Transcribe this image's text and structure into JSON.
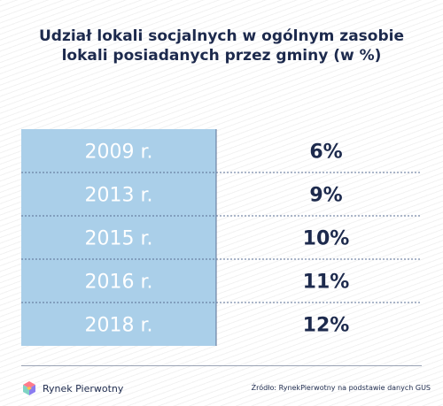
{
  "chart_data": {
    "type": "table",
    "title": "Udział lokali socjalnych w ogólnym zasobie lokali posiadanych przez gminy (w %)",
    "title_lines": [
      "Udział lokali socjalnych w ogólnym zasobie",
      "lokali posiadanych przez gminy (w %)"
    ],
    "columns": [
      "",
      ""
    ],
    "categories": [
      "2009 r.",
      "2013 r.",
      "2015 r.",
      "2016 r.",
      "2018 r."
    ],
    "value_labels": [
      "6%",
      "9%",
      "10%",
      "11%",
      "12%"
    ],
    "values": [
      6,
      9,
      10,
      11,
      12
    ],
    "unit": "%"
  },
  "footer": {
    "brand": "RynekPierwotny",
    "brand_display": "Rynek Pierwotny",
    "source": "Źródło: RynekPierwotny na podstawie danych GUS"
  },
  "colors": {
    "label_column_bg": "#aacfe9",
    "label_text": "#ffffff",
    "value_text": "#1d2a4d",
    "title_text": "#1d2a4d",
    "separator": "#5a6f94",
    "logo": [
      "#ff7a8a",
      "#7fd3c4",
      "#8a7cf0",
      "#ffc24d"
    ]
  }
}
